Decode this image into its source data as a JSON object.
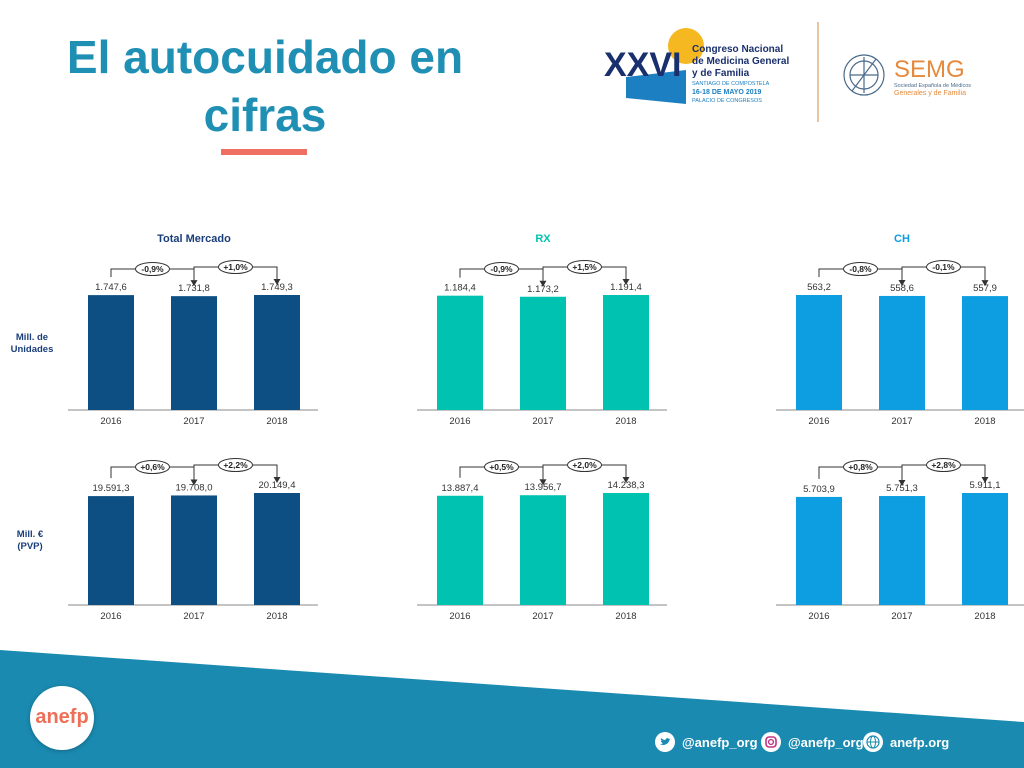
{
  "slide": {
    "title": "El autocuidado en cifras",
    "title_lines": [
      "El autocuidado en",
      "cifras"
    ],
    "accent_color": "#ef6f63",
    "title_color": "#1f8fb4"
  },
  "congreso_logo": {
    "numeral": "XXVI",
    "line1": "Congreso Nacional",
    "line2": "de Medicina General",
    "line3": "y de Familia",
    "city": "SANTIAGO DE COMPOSTELA",
    "dates": "16-18 DE MAYO 2019",
    "venue": "PALACIO DE CONGRESOS"
  },
  "semg_logo": {
    "name": "SEMG",
    "line1": "Sociedad Española de Médicos",
    "line2": "Generales y de Familia"
  },
  "row_labels": [
    [
      "Mill. de",
      "Unidades"
    ],
    [
      "Mill. €",
      "(PVP)"
    ]
  ],
  "chart_data": [
    {
      "type": "bar",
      "title": "Total Mercado",
      "categories": [
        "2016",
        "2017",
        "2018"
      ],
      "values": [
        1747.6,
        1731.8,
        1749.3
      ],
      "value_labels": [
        "1.747,6",
        "1.731,8",
        "1.749,3"
      ],
      "changes": [
        "-0,9%",
        "+1,0%"
      ],
      "color": "#0d4f83",
      "ylabel": "Mill. de Unidades"
    },
    {
      "type": "bar",
      "title": "RX",
      "categories": [
        "2016",
        "2017",
        "2018"
      ],
      "values": [
        1184.4,
        1173.2,
        1191.4
      ],
      "value_labels": [
        "1.184,4",
        "1.173,2",
        "1.191,4"
      ],
      "changes": [
        "-0,9%",
        "+1,5%"
      ],
      "color": "#00c2b0",
      "ylabel": "Mill. de Unidades"
    },
    {
      "type": "bar",
      "title": "CH",
      "categories": [
        "2016",
        "2017",
        "2018"
      ],
      "values": [
        563.2,
        558.6,
        557.9
      ],
      "value_labels": [
        "563,2",
        "558,6",
        "557,9"
      ],
      "changes": [
        "-0,8%",
        "-0,1%"
      ],
      "color": "#0c9ee0",
      "ylabel": "Mill. de Unidades"
    },
    {
      "type": "bar",
      "title": "",
      "categories": [
        "2016",
        "2017",
        "2018"
      ],
      "values": [
        19591.3,
        19708.0,
        20149.4
      ],
      "value_labels": [
        "19.591,3",
        "19.708,0",
        "20.149,4"
      ],
      "changes": [
        "+0,6%",
        "+2,2%"
      ],
      "color": "#0d4f83",
      "ylabel": "Mill. € (PVP)"
    },
    {
      "type": "bar",
      "title": "",
      "categories": [
        "2016",
        "2017",
        "2018"
      ],
      "values": [
        13887.4,
        13956.7,
        14238.3
      ],
      "value_labels": [
        "13.887,4",
        "13.956,7",
        "14.238,3"
      ],
      "changes": [
        "+0,5%",
        "+2,0%"
      ],
      "color": "#00c2b0",
      "ylabel": "Mill. € (PVP)"
    },
    {
      "type": "bar",
      "title": "",
      "categories": [
        "2016",
        "2017",
        "2018"
      ],
      "values": [
        5703.9,
        5751.3,
        5911.1
      ],
      "value_labels": [
        "5.703,9",
        "5.751,3",
        "5.911,1"
      ],
      "changes": [
        "+0,8%",
        "+2,8%"
      ],
      "color": "#0c9ee0",
      "ylabel": "Mill. € (PVP)"
    }
  ],
  "footer": {
    "brand": "anefp",
    "brand_color": "#ee6f57",
    "band_color": "#1a8ab0",
    "links": [
      {
        "icon": "twitter-icon",
        "text": "@anefp_org"
      },
      {
        "icon": "instagram-icon",
        "text": "@anefp_org"
      },
      {
        "icon": "globe-icon",
        "text": "anefp.org"
      }
    ]
  }
}
